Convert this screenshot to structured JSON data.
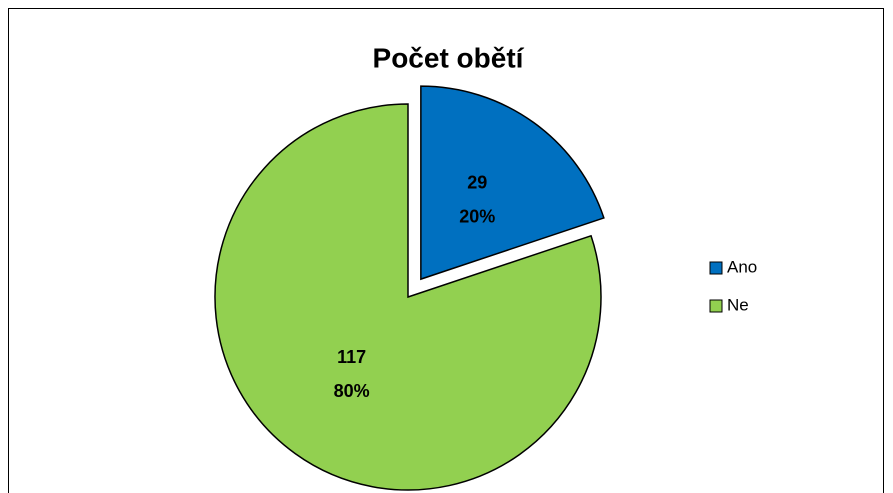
{
  "chart_data": {
    "type": "pie",
    "title": "Počet obětí",
    "categories": [
      "Ano",
      "Ne"
    ],
    "values": [
      29,
      117
    ],
    "percent_labels": [
      "20%",
      "80%"
    ],
    "colors": [
      "#0070c0",
      "#92d050"
    ],
    "explode": [
      true,
      false
    ],
    "legend": "right"
  }
}
